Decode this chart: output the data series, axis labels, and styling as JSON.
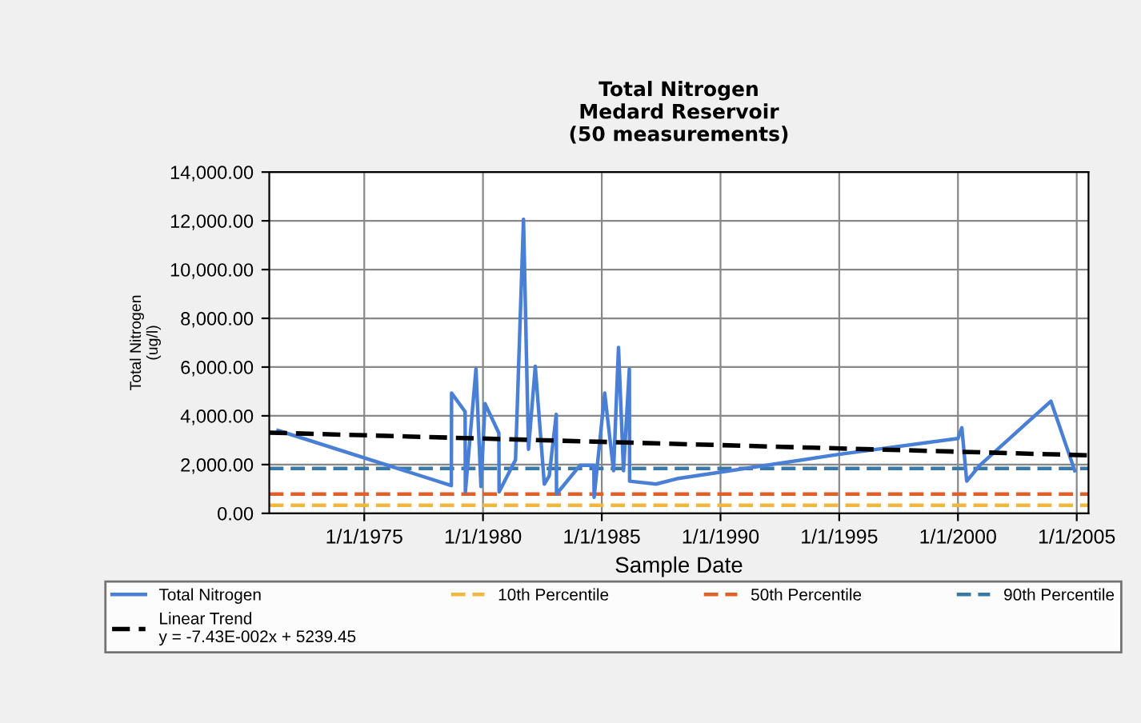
{
  "chart_data": {
    "type": "line",
    "title": "Total Nitrogen\nMedard Reservoir\n(50 measurements)",
    "xlabel": "Sample Date",
    "ylabel": "Total Nitrogen\n(ug/l)",
    "series": [
      {
        "name": "Total Nitrogen",
        "color": "#4a7fd6",
        "x": [
          "1971-05-15",
          "1978-09-01",
          "1978-09-05",
          "1979-04-01",
          "1979-04-05",
          "1979-09-15",
          "1979-12-01",
          "1980-02-01",
          "1980-09-01",
          "1980-09-05",
          "1981-05-15",
          "1981-09-15",
          "1981-12-01",
          "1982-03-15",
          "1982-08-01",
          "1982-10-15",
          "1983-02-01",
          "1983-02-05",
          "1984-02-01",
          "1984-09-01",
          "1984-09-05",
          "1985-02-15",
          "1985-07-01",
          "1985-09-15",
          "1985-12-01",
          "1986-03-01",
          "1986-03-05",
          "1987-04-15",
          "1988-03-01",
          "1994-12-01",
          "2000-01-01",
          "2000-03-01",
          "2000-05-15",
          "2000-12-01",
          "2003-12-01",
          "2004-12-01"
        ],
        "values": [
          3400,
          1140,
          4930,
          4170,
          880,
          5920,
          1100,
          4500,
          3290,
          880,
          2190,
          12060,
          2630,
          6030,
          1200,
          1530,
          4060,
          790,
          1970,
          1970,
          660,
          4930,
          1750,
          6800,
          1750,
          5920,
          1320,
          1200,
          1420,
          2410,
          3070,
          3510,
          1320,
          1970,
          4600,
          1750
        ]
      },
      {
        "name": "Linear Trend\ny = -7.43E-002x + 5239.45",
        "color": "#000000",
        "line_style": "dashed",
        "x": [
          "1971-01-01",
          "2005-07-01"
        ],
        "values": [
          3310,
          2380
        ]
      }
    ],
    "ref_lines": [
      {
        "axis": "y",
        "value": 330,
        "label": "10th Percentile",
        "color": "#f0b840",
        "line_style": "dashed"
      },
      {
        "axis": "y",
        "value": 790,
        "label": "50th Percentile",
        "color": "#e0602a",
        "line_style": "dashed"
      },
      {
        "axis": "y",
        "value": 1840,
        "label": "90th Percentile",
        "color": "#3a78a8",
        "line_style": "dashed"
      }
    ],
    "xlim": [
      "1971-01-01",
      "2005-07-01"
    ],
    "xticks": [
      {
        "value": "1975-01-01",
        "label": "1/1/1975"
      },
      {
        "value": "1980-01-01",
        "label": "1/1/1980"
      },
      {
        "value": "1985-01-01",
        "label": "1/1/1985"
      },
      {
        "value": "1990-01-01",
        "label": "1/1/1990"
      },
      {
        "value": "1995-01-01",
        "label": "1/1/1995"
      },
      {
        "value": "2000-01-01",
        "label": "1/1/2000"
      },
      {
        "value": "2005-01-01",
        "label": "1/1/2005"
      }
    ],
    "ylim": [
      0,
      14000
    ],
    "yticks": [
      {
        "value": 0,
        "label": "0.00"
      },
      {
        "value": 2000,
        "label": "2,000.00"
      },
      {
        "value": 4000,
        "label": "4,000.00"
      },
      {
        "value": 6000,
        "label": "6,000.00"
      },
      {
        "value": 8000,
        "label": "8,000.00"
      },
      {
        "value": 10000,
        "label": "10,000.00"
      },
      {
        "value": 12000,
        "label": "12,000.00"
      },
      {
        "value": 14000,
        "label": "14,000.00"
      }
    ],
    "grid": true,
    "legend": "bottom",
    "marker": "none",
    "line_style": "solid"
  }
}
